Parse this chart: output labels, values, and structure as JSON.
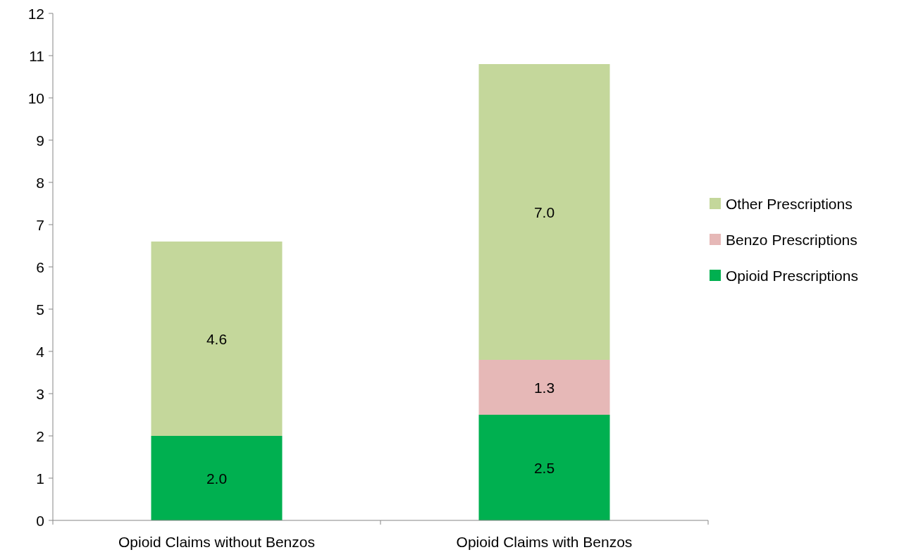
{
  "chart_data": {
    "type": "bar",
    "stacked": true,
    "categories": [
      "Opioid Claims without Benzos",
      "Opioid Claims with Benzos"
    ],
    "series": [
      {
        "name": "Opioid Prescriptions",
        "color": "#00b050",
        "values": [
          2.0,
          2.5
        ],
        "value_labels": [
          "2.0",
          "2.5"
        ]
      },
      {
        "name": "Benzo Prescriptions",
        "color": "#e6b8b7",
        "values": [
          null,
          1.3
        ],
        "value_labels": [
          null,
          "1.3"
        ]
      },
      {
        "name": "Other Prescriptions",
        "color": "#c4d79b",
        "values": [
          4.6,
          7.0
        ],
        "value_labels": [
          "4.6",
          "7.0"
        ]
      }
    ],
    "ylim": [
      0,
      12
    ],
    "yticks": [
      0,
      1,
      2,
      3,
      4,
      5,
      6,
      7,
      8,
      9,
      10,
      11,
      12
    ],
    "grid": false,
    "legend": "right"
  }
}
